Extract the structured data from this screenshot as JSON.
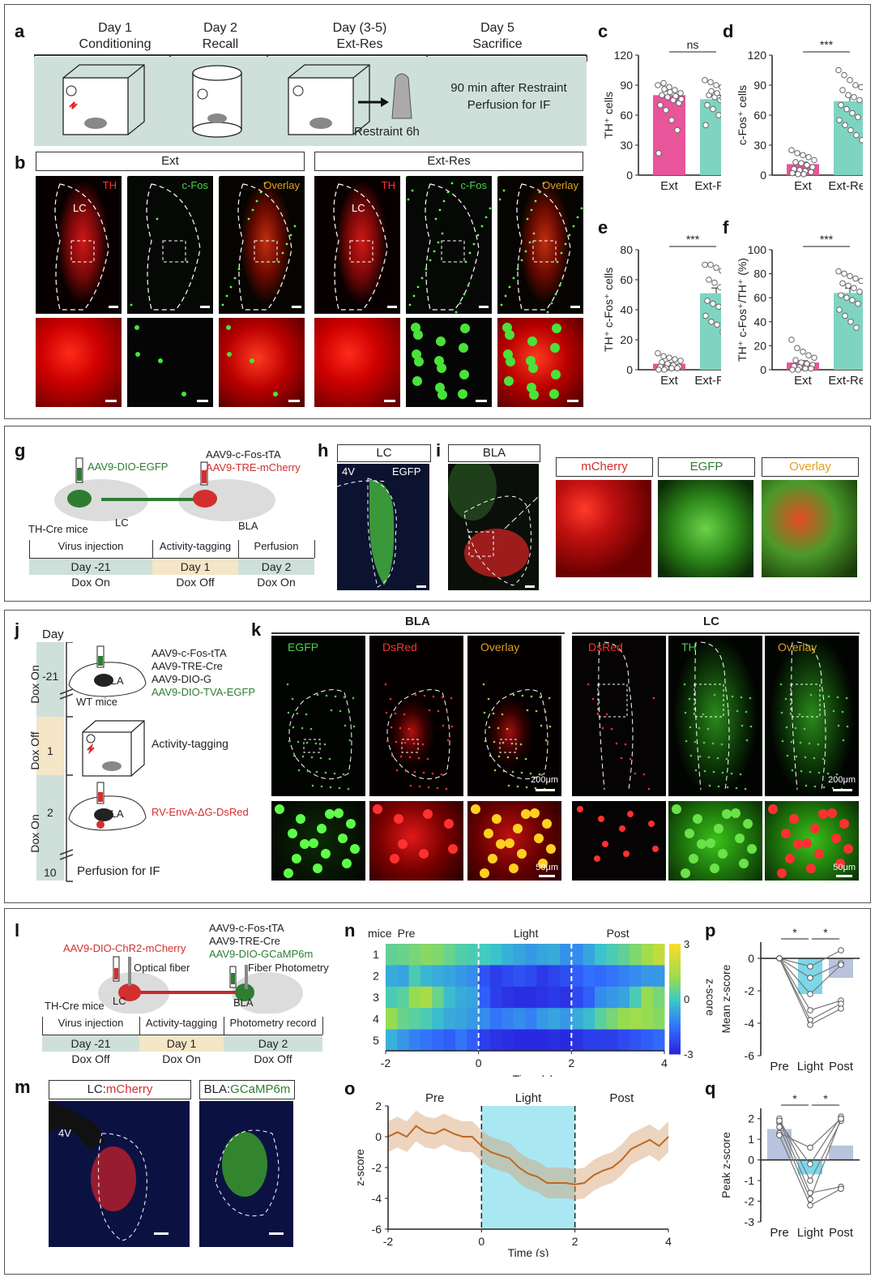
{
  "panels": {
    "a": {
      "label": "a",
      "days": [
        {
          "day": "Day 1",
          "name": "Conditioning"
        },
        {
          "day": "Day 2",
          "name": "Recall"
        },
        {
          "day": "Day (3-5)",
          "name": "Ext-Res"
        },
        {
          "day": "Day 5",
          "name": "Sacrifice"
        }
      ],
      "restraint": "Restraint 6h",
      "note_line1": "90 min after Restraint",
      "note_line2": "Perfusion for IF"
    },
    "b": {
      "label": "b",
      "group1": "Ext",
      "group2": "Ext-Res",
      "tags": {
        "th": "TH",
        "cfos": "c-Fos",
        "overlay": "Overlay",
        "lc": "LC"
      }
    },
    "c": {
      "label": "c"
    },
    "d": {
      "label": "d"
    },
    "e": {
      "label": "e"
    },
    "f": {
      "label": "f"
    },
    "g": {
      "label": "g",
      "virus_left": "AAV9-DIO-EGFP",
      "virus_right1": "AAV9-c-Fos-tTA",
      "virus_right2": "AAV9-TRE-mCherry",
      "lc": "LC",
      "bla": "BLA",
      "mice": "TH-Cre mice",
      "timeline": [
        {
          "phase": "Virus injection",
          "day": "Day -21",
          "dox": "Dox On"
        },
        {
          "phase": "Activity-tagging",
          "day": "Day 1",
          "dox": "Dox Off"
        },
        {
          "phase": "Perfusion",
          "day": "Day 2",
          "dox": "Dox On"
        }
      ]
    },
    "h": {
      "label": "h",
      "title": "LC",
      "tag": "EGFP",
      "v4": "4V"
    },
    "i": {
      "label": "i",
      "title": "BLA",
      "headers": [
        "mCherry",
        "EGFP",
        "Overlay"
      ]
    },
    "j": {
      "label": "j",
      "day_header": "Day",
      "rows": [
        {
          "day": "-21",
          "dox": "Dox On"
        },
        {
          "day": "1",
          "dox": "Dox Off"
        },
        {
          "day": "2",
          "dox": "Dox On"
        },
        {
          "day": "10",
          "dox": ""
        }
      ],
      "viruses": [
        "AAV9-c-Fos-tTA",
        "AAV9-TRE-Cre",
        "AAV9-DIO-G",
        "AAV9-DIO-TVA-EGFP"
      ],
      "wt": "WT mice",
      "bla": "BLA",
      "tagging": "Activity-tagging",
      "rv": "RV-EnvA-ΔG-DsRed",
      "perfusion": "Perfusion for IF"
    },
    "k": {
      "label": "k",
      "bla": "BLA",
      "lc": "LC",
      "tags": [
        "EGFP",
        "DsRed",
        "Overlay",
        "DsRed",
        "TH",
        "Overlay"
      ],
      "scale1": "200μm",
      "scale2": "50μm"
    },
    "l": {
      "label": "l",
      "virus_left": "AAV9-DIO-ChR2-mCherry",
      "fiber_left": "Optical fiber",
      "virus_right1": "AAV9-c-Fos-tTA",
      "virus_right2": "AAV9-TRE-Cre",
      "virus_right3": "AAV9-DIO-GCaMP6m",
      "fiber_right": "Fiber Photometry",
      "lc": "LC",
      "bla": "BLA",
      "mice": "TH-Cre mice",
      "timeline": [
        {
          "phase": "Virus injection",
          "day": "Day -21",
          "dox": "Dox Off"
        },
        {
          "phase": "Activity-tagging",
          "day": "Day 1",
          "dox": "Dox On"
        },
        {
          "phase": "Photometry record",
          "day": "Day 2",
          "dox": "Dox Off"
        }
      ]
    },
    "m": {
      "label": "m",
      "left_prefix": "LC:",
      "left_name": "mCherry",
      "right_prefix": "BLA:",
      "right_name": "GCaMP6m",
      "v4": "4V"
    },
    "n": {
      "label": "n",
      "mice": "mice",
      "epochs": [
        "Pre",
        "Light",
        "Post"
      ],
      "xlabel": "Time (s)",
      "cbar_label": "z-score"
    },
    "o": {
      "label": "o",
      "epochs": [
        "Pre",
        "Light",
        "Post"
      ],
      "xlabel": "Time (s)",
      "ylabel": "z-score"
    },
    "p": {
      "label": "p"
    },
    "q": {
      "label": "q"
    }
  },
  "chart_data": [
    {
      "id": "c",
      "type": "bar",
      "categories": [
        "Ext",
        "Ext-Res"
      ],
      "values": [
        80,
        76
      ],
      "errors": [
        4,
        4
      ],
      "ylabel": "TH⁺ cells",
      "ylim": [
        0,
        120
      ],
      "yticks": [
        0,
        30,
        60,
        90,
        120
      ],
      "sig": "ns",
      "colors": [
        "#e8559a",
        "#7fd4c1"
      ],
      "points": [
        [
          90,
          92,
          88,
          85,
          82,
          80,
          78,
          75,
          72,
          70,
          65,
          55,
          45,
          22,
          86,
          83,
          79,
          76
        ],
        [
          95,
          93,
          90,
          88,
          85,
          80,
          78,
          75,
          72,
          70,
          66,
          60,
          55,
          50,
          84,
          82,
          77
        ]
      ]
    },
    {
      "id": "d",
      "type": "bar",
      "categories": [
        "Ext",
        "Ext-Res"
      ],
      "values": [
        11,
        74
      ],
      "errors": [
        2,
        5
      ],
      "ylabel": "c-Fos⁺ cells",
      "ylim": [
        0,
        120
      ],
      "yticks": [
        0,
        30,
        60,
        90,
        120
      ],
      "sig": "***",
      "colors": [
        "#e8559a",
        "#7fd4c1"
      ],
      "points": [
        [
          25,
          22,
          20,
          18,
          15,
          13,
          12,
          10,
          8,
          6,
          5,
          4,
          3,
          2,
          1,
          1
        ],
        [
          105,
          100,
          95,
          90,
          88,
          85,
          80,
          78,
          75,
          70,
          66,
          62,
          58,
          55,
          50,
          45,
          40,
          35
        ]
      ]
    },
    {
      "id": "e",
      "type": "bar",
      "categories": [
        "Ext",
        "Ext-Res"
      ],
      "values": [
        4,
        51
      ],
      "errors": [
        0.7,
        3.5
      ],
      "ylabel": "TH⁺ c-Fos⁺ cells",
      "ylim": [
        0,
        80
      ],
      "yticks": [
        0,
        20,
        40,
        60,
        80
      ],
      "sig": "***",
      "colors": [
        "#e8559a",
        "#7fd4c1"
      ],
      "points": [
        [
          11,
          9,
          8,
          7,
          6,
          5,
          4,
          3,
          2,
          2,
          1,
          1,
          1,
          0,
          0
        ],
        [
          70,
          70,
          68,
          66,
          64,
          60,
          58,
          55,
          50,
          46,
          44,
          42,
          40,
          36,
          32,
          30,
          25,
          18
        ]
      ]
    },
    {
      "id": "f",
      "type": "bar",
      "categories": [
        "Ext",
        "Ext-Res"
      ],
      "values": [
        6,
        64
      ],
      "errors": [
        1.5,
        4
      ],
      "ylabel": "TH⁺ c-Fos⁺/TH⁺ (%)",
      "ylim": [
        0,
        100
      ],
      "yticks": [
        0,
        20,
        40,
        60,
        80,
        100
      ],
      "sig": "***",
      "colors": [
        "#e8559a",
        "#7fd4c1"
      ],
      "points": [
        [
          25,
          18,
          15,
          12,
          10,
          8,
          6,
          5,
          4,
          3,
          2,
          1,
          1,
          0,
          0
        ],
        [
          82,
          80,
          78,
          76,
          74,
          72,
          70,
          68,
          65,
          62,
          60,
          58,
          55,
          50,
          45,
          40,
          35
        ]
      ]
    },
    {
      "id": "n",
      "type": "heatmap",
      "rows": [
        "1",
        "2",
        "3",
        "4",
        "5"
      ],
      "x": [
        -2,
        4
      ],
      "xticks": [
        -2,
        0,
        2,
        4
      ],
      "vmin": -3,
      "vmax": 3,
      "cbar_ticks": [
        3,
        0,
        -3
      ],
      "values": [
        [
          0.5,
          0.6,
          0.8,
          1.0,
          0.9,
          0.6,
          0.3,
          0.2,
          0.1,
          -0.1,
          -0.4,
          -0.6,
          -0.8,
          -0.6,
          -0.5,
          -0.9,
          -1.0,
          -0.6,
          -0.1,
          0.2,
          0.5,
          0.9,
          1.4,
          2.0
        ],
        [
          -0.5,
          -0.6,
          0.2,
          -0.3,
          -0.5,
          -0.6,
          -0.8,
          -1.0,
          -2.0,
          -2.4,
          -2.2,
          -2.0,
          -2.2,
          -2.5,
          -2.3,
          -2.1,
          -1.8,
          -1.5,
          -1.6,
          -1.4,
          -1.2,
          -1.0,
          -0.8,
          -0.8
        ],
        [
          0.2,
          0.4,
          1.2,
          1.5,
          0.6,
          -0.2,
          -0.5,
          -0.6,
          -1.8,
          -2.4,
          -2.6,
          -2.7,
          -2.7,
          -2.6,
          -2.5,
          -2.6,
          -2.2,
          -1.8,
          -1.0,
          -0.8,
          -0.6,
          0.2,
          1.2,
          0.8
        ],
        [
          1.2,
          0.6,
          0.4,
          0.2,
          -0.2,
          -0.5,
          -0.6,
          -0.8,
          -1.0,
          -1.4,
          -1.2,
          -1.0,
          -1.2,
          -0.8,
          -0.6,
          -0.8,
          -0.5,
          -0.2,
          0.4,
          0.8,
          1.2,
          1.4,
          1.2,
          1.0
        ],
        [
          -0.4,
          -0.8,
          -1.2,
          -1.4,
          -1.6,
          -1.8,
          -1.4,
          -1.8,
          -2.4,
          -2.6,
          -2.7,
          -2.8,
          -2.8,
          -2.8,
          -2.7,
          -2.8,
          -2.6,
          -2.4,
          -2.4,
          -2.4,
          -2.2,
          -2.0,
          -1.8,
          -1.6
        ]
      ]
    },
    {
      "id": "o",
      "type": "line",
      "x": [
        -2,
        -1.8,
        -1.6,
        -1.4,
        -1.2,
        -1.0,
        -0.8,
        -0.6,
        -0.4,
        -0.2,
        0,
        0.2,
        0.4,
        0.6,
        0.8,
        1.0,
        1.2,
        1.4,
        1.6,
        1.8,
        2.0,
        2.2,
        2.4,
        2.6,
        2.8,
        3.0,
        3.2,
        3.4,
        3.6,
        3.8,
        4.0
      ],
      "y": [
        0,
        0.3,
        0,
        0.7,
        0.3,
        0.2,
        0.5,
        0.2,
        0,
        0,
        -0.6,
        -1.0,
        -1.2,
        -1.4,
        -2.0,
        -2.4,
        -2.6,
        -3.0,
        -3.0,
        -3.0,
        -3.1,
        -3.0,
        -2.5,
        -2.2,
        -2.0,
        -1.5,
        -0.8,
        -0.5,
        -0.2,
        -0.6,
        0
      ],
      "band": 1.0,
      "xlim": [
        -2,
        4
      ],
      "ylim": [
        -6,
        2
      ],
      "xticks": [
        -2,
        0,
        2,
        4
      ],
      "yticks": [
        2,
        0,
        -2,
        -4,
        -6
      ],
      "shade": [
        0,
        2
      ]
    },
    {
      "id": "p",
      "type": "bar",
      "categories": [
        "Pre",
        "Light",
        "Post"
      ],
      "values": [
        0,
        -2.2,
        -1.2
      ],
      "ylabel": "Mean z-score",
      "ylim": [
        -6,
        1
      ],
      "yticks": [
        0,
        -2,
        -4,
        -6
      ],
      "sig": [
        "*",
        "*"
      ],
      "lines": [
        [
          0,
          -0.5,
          0.5
        ],
        [
          0,
          -1.2,
          -0.3
        ],
        [
          0,
          -2.2,
          -0.4
        ],
        [
          0,
          -3.2,
          -2.6
        ],
        [
          0,
          -3.8,
          -2.8
        ],
        [
          0,
          -4.1,
          -3.1
        ]
      ],
      "colors": [
        "#b9c3dd",
        "#7dd7e8",
        "#b9c3dd"
      ]
    },
    {
      "id": "q",
      "type": "bar",
      "categories": [
        "Pre",
        "Light",
        "Post"
      ],
      "values": [
        1.5,
        -0.7,
        0.7
      ],
      "ylabel": "Peak z-score",
      "ylim": [
        -3,
        2.5
      ],
      "yticks": [
        2,
        1,
        0,
        -1,
        -2,
        -3
      ],
      "sig": [
        "*",
        "*"
      ],
      "lines": [
        [
          1.3,
          0.6,
          2.0
        ],
        [
          1.8,
          -0.2,
          2.1
        ],
        [
          2.0,
          -1.0,
          1.9
        ],
        [
          1.9,
          -1.6,
          -1.3
        ],
        [
          1.2,
          -2.2,
          -1.4
        ],
        [
          1.6,
          -1.9,
          2.0
        ]
      ],
      "colors": [
        "#b9c3dd",
        "#7dd7e8",
        "#b9c3dd"
      ]
    }
  ]
}
